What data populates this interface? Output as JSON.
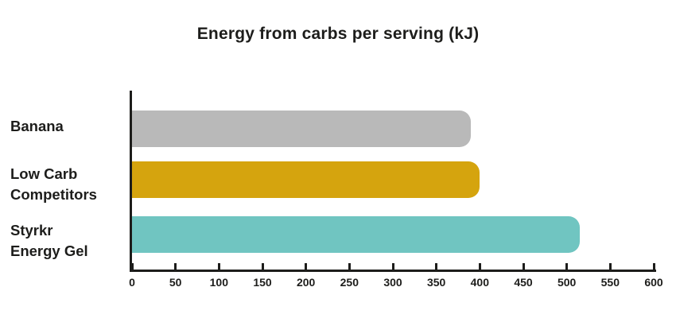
{
  "title": "Energy from carbs per serving (kJ)",
  "colors": {
    "background": "#ffffff",
    "text": "#1d1d1b",
    "axis": "#1d1d1b",
    "bar_banana": "#b9b9b9",
    "bar_low_carb_competitors": "#d5a40e",
    "bar_styrkr_energy_gel": "#70c5c1"
  },
  "chart_data": {
    "type": "bar",
    "orientation": "horizontal",
    "title": "Energy from carbs per serving (kJ)",
    "categories": [
      "Banana",
      "Low Carb Competitors",
      "Styrkr Energy Gel"
    ],
    "category_label_lines": [
      [
        "Banana"
      ],
      [
        "Low Carb",
        "Competitors"
      ],
      [
        "Styrkr",
        "Energy Gel"
      ]
    ],
    "values": [
      390,
      400,
      515
    ],
    "bar_colors": [
      "#b9b9b9",
      "#d5a40e",
      "#70c5c1"
    ],
    "xlabel": "",
    "ylabel": "",
    "xlim": [
      0,
      600
    ],
    "x_ticks": [
      0,
      50,
      100,
      150,
      200,
      250,
      300,
      350,
      400,
      450,
      500,
      550,
      600
    ],
    "grid": false,
    "legend": false
  }
}
